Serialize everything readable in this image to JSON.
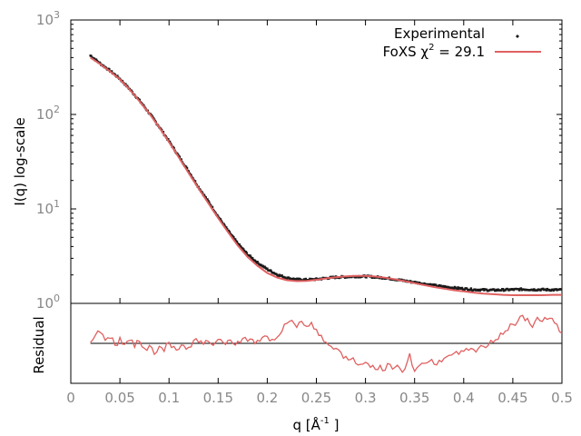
{
  "chart_data": [
    {
      "type": "scatter",
      "panel": "main",
      "ylabel": "I(q) log-scale",
      "yscale": "log",
      "ylim": [
        1,
        1000
      ],
      "xlim": [
        0,
        0.5
      ],
      "yticks": [
        {
          "value": 1,
          "base": "10",
          "exp": "0"
        },
        {
          "value": 10,
          "base": "10",
          "exp": "1"
        },
        {
          "value": 100,
          "base": "10",
          "exp": "2"
        },
        {
          "value": 1000,
          "base": "10",
          "exp": "3"
        }
      ],
      "legend": {
        "placement": "top-right",
        "experimental": "Experimental",
        "fit_prefix": "FoXS χ",
        "fit_sup": "2",
        "fit_suffix": " = 29.1"
      },
      "series": [
        {
          "name": "Experimental",
          "style": "points",
          "color": "#1a1a1a",
          "x": [
            0.02,
            0.03,
            0.04,
            0.05,
            0.06,
            0.07,
            0.08,
            0.09,
            0.1,
            0.11,
            0.12,
            0.13,
            0.14,
            0.15,
            0.16,
            0.17,
            0.18,
            0.19,
            0.2,
            0.21,
            0.22,
            0.23,
            0.24,
            0.25,
            0.26,
            0.27,
            0.28,
            0.29,
            0.3,
            0.31,
            0.32,
            0.33,
            0.34,
            0.35,
            0.36,
            0.37,
            0.38,
            0.39,
            0.4,
            0.41,
            0.42,
            0.43,
            0.44,
            0.45,
            0.46,
            0.47,
            0.48,
            0.49,
            0.5
          ],
          "y": [
            420,
            345,
            290,
            238,
            185,
            140,
            103,
            74,
            52,
            36,
            25,
            17,
            12,
            8.3,
            5.9,
            4.3,
            3.3,
            2.7,
            2.3,
            2.02,
            1.86,
            1.79,
            1.78,
            1.8,
            1.85,
            1.89,
            1.91,
            1.93,
            1.93,
            1.9,
            1.86,
            1.8,
            1.73,
            1.67,
            1.61,
            1.55,
            1.5,
            1.46,
            1.43,
            1.4,
            1.39,
            1.38,
            1.39,
            1.4,
            1.41,
            1.4,
            1.4,
            1.39,
            1.39
          ]
        },
        {
          "name": "FoXS χ2 = 29.1",
          "style": "line",
          "color": "#e06060",
          "x": [
            0.02,
            0.03,
            0.04,
            0.05,
            0.06,
            0.07,
            0.08,
            0.09,
            0.1,
            0.11,
            0.12,
            0.13,
            0.14,
            0.15,
            0.16,
            0.17,
            0.18,
            0.19,
            0.2,
            0.21,
            0.22,
            0.23,
            0.24,
            0.25,
            0.26,
            0.27,
            0.28,
            0.29,
            0.3,
            0.31,
            0.32,
            0.33,
            0.34,
            0.35,
            0.36,
            0.37,
            0.38,
            0.39,
            0.4,
            0.41,
            0.42,
            0.43,
            0.44,
            0.45,
            0.46,
            0.47,
            0.48,
            0.49,
            0.5
          ],
          "y": [
            400,
            340,
            285,
            235,
            183,
            138,
            102,
            73,
            51,
            35,
            24,
            16.5,
            11.5,
            8,
            5.7,
            4.1,
            3.1,
            2.5,
            2.1,
            1.88,
            1.76,
            1.72,
            1.73,
            1.78,
            1.84,
            1.89,
            1.93,
            1.95,
            1.95,
            1.92,
            1.87,
            1.8,
            1.72,
            1.64,
            1.56,
            1.49,
            1.43,
            1.38,
            1.34,
            1.3,
            1.27,
            1.25,
            1.23,
            1.22,
            1.22,
            1.22,
            1.22,
            1.23,
            1.23
          ]
        }
      ]
    },
    {
      "type": "line",
      "panel": "residual",
      "ylabel": "Residual",
      "xlabel_prefix": "q [Å",
      "xlabel_sup": "-1",
      "xlabel_suffix": " ]",
      "xlim": [
        0,
        0.5
      ],
      "ylim": [
        -4,
        4
      ],
      "xticks": [
        "0",
        "0.05",
        "0.1",
        "0.15",
        "0.2",
        "0.25",
        "0.3",
        "0.35",
        "0.4",
        "0.45",
        "0.5"
      ],
      "zero_line": 0,
      "series": [
        {
          "name": "Residual",
          "color": "#e06060",
          "x": [
            0.02,
            0.025,
            0.03,
            0.035,
            0.04,
            0.045,
            0.05,
            0.055,
            0.06,
            0.065,
            0.07,
            0.075,
            0.08,
            0.085,
            0.09,
            0.095,
            0.1,
            0.105,
            0.11,
            0.115,
            0.12,
            0.125,
            0.13,
            0.135,
            0.14,
            0.145,
            0.15,
            0.155,
            0.16,
            0.165,
            0.17,
            0.175,
            0.18,
            0.185,
            0.19,
            0.195,
            0.2,
            0.205,
            0.21,
            0.215,
            0.22,
            0.225,
            0.23,
            0.235,
            0.24,
            0.245,
            0.25,
            0.255,
            0.26,
            0.265,
            0.27,
            0.275,
            0.28,
            0.285,
            0.29,
            0.295,
            0.3,
            0.305,
            0.31,
            0.315,
            0.32,
            0.325,
            0.33,
            0.335,
            0.34,
            0.345,
            0.35,
            0.355,
            0.36,
            0.365,
            0.37,
            0.375,
            0.38,
            0.385,
            0.39,
            0.395,
            0.4,
            0.405,
            0.41,
            0.415,
            0.42,
            0.425,
            0.43,
            0.435,
            0.44,
            0.445,
            0.45,
            0.455,
            0.46,
            0.465,
            0.47,
            0.475,
            0.48,
            0.485,
            0.49,
            0.495,
            0.5
          ],
          "y": [
            0.1,
            0.8,
            1.1,
            0.3,
            0.5,
            -0.2,
            0.6,
            -0.1,
            0.3,
            -0.4,
            0.2,
            -0.5,
            -0.2,
            -1.1,
            -0.3,
            -0.8,
            0.1,
            -0.3,
            -0.6,
            -0.2,
            -0.4,
            0.3,
            0.1,
            -0.1,
            0.2,
            -0.2,
            0.4,
            0.1,
            0.3,
            0.0,
            0.2,
            0.5,
            0.2,
            0.4,
            0.3,
            0.6,
            0.7,
            0.4,
            0.6,
            1.2,
            2.0,
            2.3,
            1.6,
            2.2,
            1.7,
            2.1,
            1.4,
            0.8,
            0.1,
            -0.3,
            -0.5,
            -0.9,
            -1.3,
            -1.6,
            -2.0,
            -2.1,
            -1.9,
            -2.4,
            -2.6,
            -2.2,
            -2.7,
            -2.1,
            -2.4,
            -2.5,
            -2.6,
            -1.0,
            -2.8,
            -2.2,
            -2.0,
            -1.8,
            -2.1,
            -1.7,
            -1.5,
            -1.2,
            -1.0,
            -1.1,
            -0.8,
            -0.7,
            -0.6,
            -0.5,
            -0.3,
            -0.2,
            0.1,
            0.4,
            0.9,
            1.3,
            1.9,
            2.2,
            2.8,
            2.5,
            1.6,
            2.6,
            2.2,
            2.4,
            2.5,
            1.9,
            1.0
          ]
        }
      ]
    }
  ]
}
